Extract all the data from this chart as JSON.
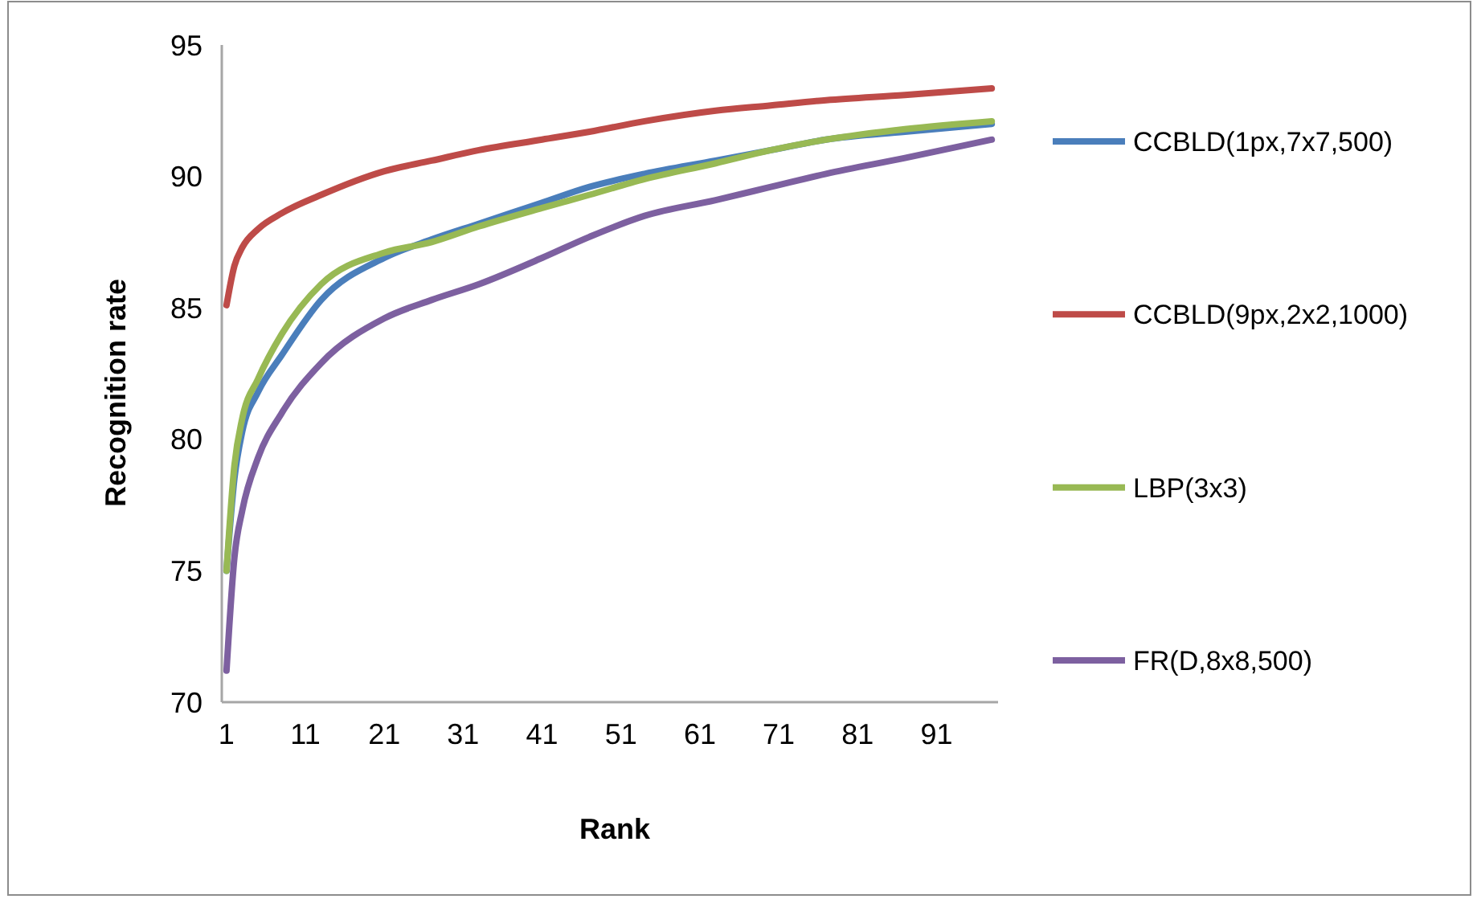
{
  "chart_data": {
    "type": "line",
    "xlabel": "Rank",
    "ylabel": "Recognition rate",
    "x": [
      1,
      2,
      3,
      5,
      8,
      13,
      21,
      27,
      33,
      41,
      47,
      54,
      63,
      70,
      77,
      87,
      98
    ],
    "xlim": [
      0.4,
      98.8
    ],
    "xticks": [
      1,
      11,
      21,
      31,
      41,
      51,
      61,
      71,
      81,
      91
    ],
    "ylim": [
      70,
      95
    ],
    "yticks": [
      70,
      75,
      80,
      85,
      90,
      95
    ],
    "grid": false,
    "legend": "right",
    "marker": "none",
    "line_style": "solid",
    "series": [
      {
        "name": "CCBLD(1px,7x7,500)",
        "color": "#4a7ebb",
        "values": [
          75.0,
          78.5,
          80.3,
          81.8,
          83.2,
          85.3,
          86.9,
          87.6,
          88.2,
          89.0,
          89.6,
          90.1,
          90.6,
          91.0,
          91.4,
          91.7,
          92.0
        ]
      },
      {
        "name": "CCBLD(9px,2x2,1000)",
        "color": "#be4b48",
        "values": [
          85.1,
          86.6,
          87.3,
          88.0,
          88.6,
          89.3,
          90.2,
          90.6,
          91.0,
          91.4,
          91.7,
          92.1,
          92.5,
          92.7,
          92.9,
          93.1,
          93.35
        ]
      },
      {
        "name": "LBP(3x3)",
        "color": "#98b954",
        "values": [
          75.0,
          79.0,
          80.8,
          82.3,
          84.0,
          85.9,
          87.1,
          87.5,
          88.1,
          88.8,
          89.3,
          89.9,
          90.5,
          91.0,
          91.4,
          91.8,
          92.1
        ]
      },
      {
        "name": "FR(D,8x8,500)",
        "color": "#7d60a0",
        "values": [
          71.2,
          75.5,
          77.3,
          79.3,
          81.0,
          82.9,
          84.6,
          85.3,
          85.9,
          86.9,
          87.7,
          88.5,
          89.1,
          89.6,
          90.1,
          90.7,
          91.4
        ]
      }
    ]
  }
}
